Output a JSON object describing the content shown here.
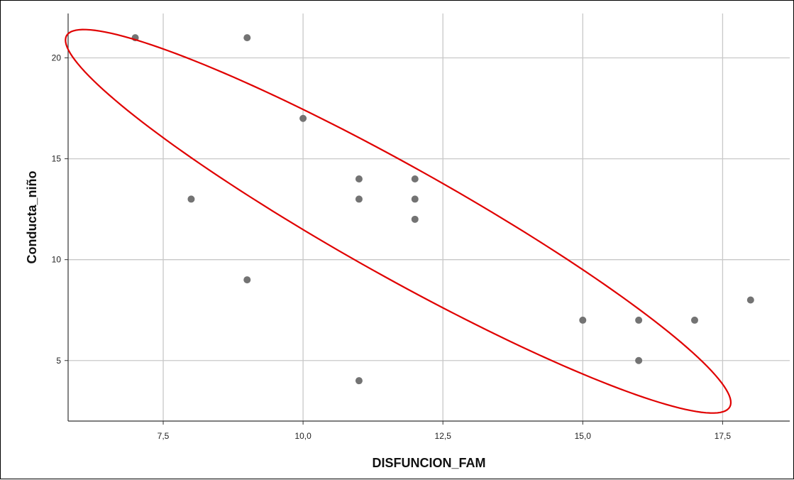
{
  "chart_data": {
    "type": "scatter",
    "title": "",
    "xlabel": "DISFUNCION_FAM",
    "ylabel": "Conducta_niño",
    "xlim": [
      5.8,
      18.7
    ],
    "ylim": [
      2.0,
      22.2
    ],
    "x_ticks": [
      7.5,
      10.0,
      12.5,
      15.0,
      17.5
    ],
    "x_tick_labels": [
      "7,5",
      "10,0",
      "12,5",
      "15,0",
      "17,5"
    ],
    "y_ticks": [
      5,
      10,
      15,
      20
    ],
    "y_tick_labels": [
      "5",
      "10",
      "15",
      "20"
    ],
    "grid": true,
    "colors": {
      "point": "#737373",
      "grid": "#c8c8c8",
      "ellipse": "#e00000",
      "axis": "#333333"
    },
    "series": [
      {
        "x": [
          7,
          9,
          10,
          8,
          9,
          11,
          11,
          11,
          12,
          12,
          12,
          15,
          16,
          16,
          17,
          18
        ],
        "y": [
          21,
          21,
          17,
          13,
          9,
          14,
          13,
          4,
          14,
          13,
          12,
          7,
          7,
          5,
          7,
          8
        ]
      }
    ],
    "annotations": [
      {
        "type": "ellipse",
        "color": "#e00000",
        "center": [
          11.7,
          11.9
        ],
        "semi_major": [
          5.93,
          -9.19
        ],
        "semi_minor": [
          -0.45,
          -2.42
        ]
      }
    ]
  }
}
